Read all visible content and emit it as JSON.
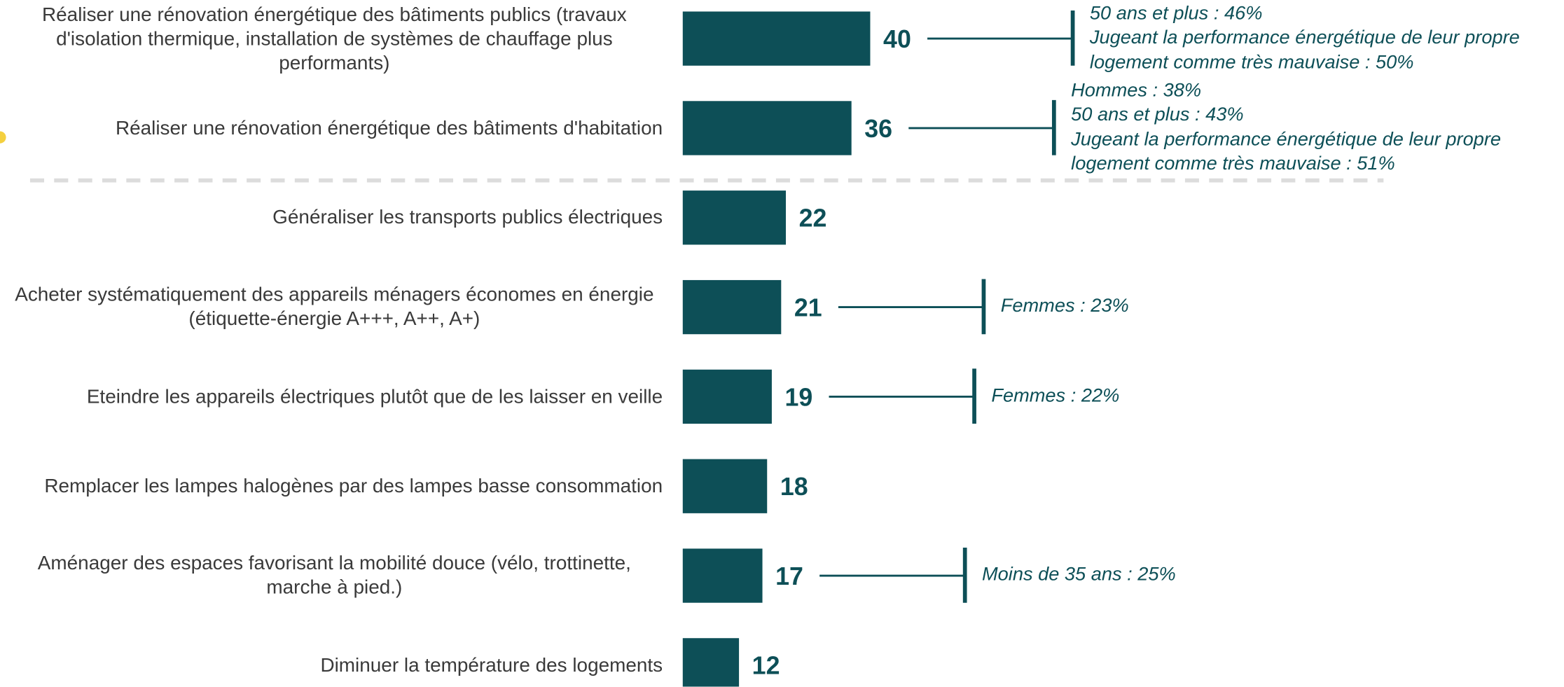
{
  "chart_data": {
    "type": "bar",
    "orientation": "horizontal",
    "color": "#0d4f57",
    "categories": [
      "Réaliser une rénovation énergétique des bâtiments publics (travaux d'isolation thermique, installation de systèmes de chauffage plus performants)",
      "Réaliser une rénovation énergétique des bâtiments d'habitation",
      "Généraliser les transports publics électriques",
      "Acheter systématiquement des appareils ménagers économes en énergie (étiquette-énergie A+++, A++, A+)",
      "Eteindre les appareils électriques plutôt que de les laisser en veille",
      "Remplacer les lampes halogènes par des lampes basse consommation",
      "Aménager des espaces favorisant la mobilité douce (vélo, trottinette, marche à pied.)",
      "Diminuer la température des logements"
    ],
    "values": [
      40,
      36,
      22,
      21,
      19,
      18,
      17,
      12
    ],
    "annotations": [
      [
        "50 ans et plus : 46%",
        "Jugeant la performance énergétique de leur propre logement comme très mauvaise : 50%"
      ],
      [
        "Hommes : 38%",
        "50 ans et plus : 43%",
        "Jugeant la performance énergétique de leur propre logement comme très mauvaise : 51%"
      ],
      null,
      [
        "Femmes : 23%"
      ],
      [
        "Femmes : 22%"
      ],
      null,
      [
        "Moins de 35 ans : 25%"
      ],
      null
    ]
  }
}
